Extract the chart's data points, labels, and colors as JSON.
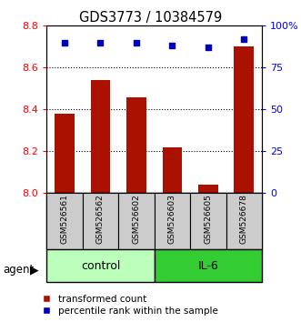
{
  "title": "GDS3773 / 10384579",
  "samples": [
    "GSM526561",
    "GSM526562",
    "GSM526602",
    "GSM526603",
    "GSM526605",
    "GSM526678"
  ],
  "red_values": [
    8.38,
    8.54,
    8.46,
    8.22,
    8.04,
    8.7
  ],
  "blue_values": [
    90,
    90,
    90,
    88,
    87,
    92
  ],
  "ylim_left": [
    8.0,
    8.8
  ],
  "ylim_right": [
    0,
    100
  ],
  "yticks_left": [
    8.0,
    8.2,
    8.4,
    8.6,
    8.8
  ],
  "yticks_right": [
    0,
    25,
    50,
    75,
    100
  ],
  "ytick_labels_right": [
    "0",
    "25",
    "50",
    "75",
    "100%"
  ],
  "bar_color": "#AA1100",
  "dot_color": "#0000BB",
  "bar_width": 0.55,
  "bg_plot": "#ffffff",
  "bg_sample_labels": "#cccccc",
  "agent_label": "agent",
  "legend_red": "transformed count",
  "legend_blue": "percentile rank within the sample",
  "control_color": "#bbffbb",
  "il6_color": "#33cc33"
}
